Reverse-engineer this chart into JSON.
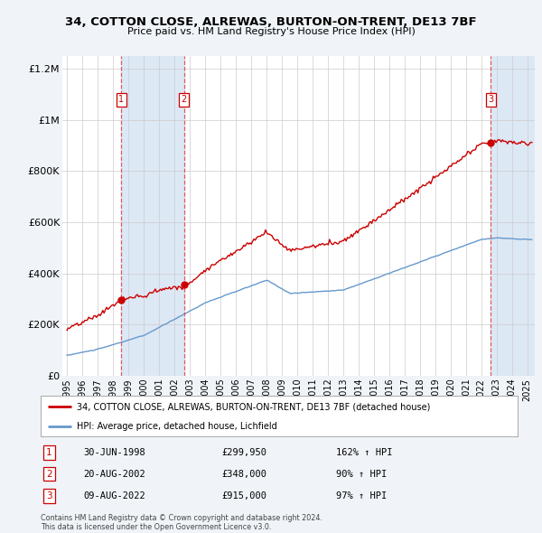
{
  "title_line1": "34, COTTON CLOSE, ALREWAS, BURTON-ON-TRENT, DE13 7BF",
  "title_line2": "Price paid vs. HM Land Registry's House Price Index (HPI)",
  "xlim": [
    1994.7,
    2025.5
  ],
  "ylim": [
    0,
    1250000
  ],
  "yticks": [
    0,
    200000,
    400000,
    600000,
    800000,
    1000000,
    1200000
  ],
  "ytick_labels": [
    "£0",
    "£200K",
    "£400K",
    "£600K",
    "£800K",
    "£1M",
    "£1.2M"
  ],
  "xticks": [
    1995,
    1996,
    1997,
    1998,
    1999,
    2000,
    2001,
    2002,
    2003,
    2004,
    2005,
    2006,
    2007,
    2008,
    2009,
    2010,
    2011,
    2012,
    2013,
    2014,
    2015,
    2016,
    2017,
    2018,
    2019,
    2020,
    2021,
    2022,
    2023,
    2024,
    2025
  ],
  "sale_color": "#cc0000",
  "hpi_color": "#6699cc",
  "background_color": "#f0f4f8",
  "plot_bg_color": "#ffffff",
  "shade_color": "#dde8f5",
  "dashed_color": "#dd4444",
  "sale_label": "34, COTTON CLOSE, ALREWAS, BURTON-ON-TRENT, DE13 7BF (detached house)",
  "hpi_label": "HPI: Average price, detached house, Lichfield",
  "transactions": [
    {
      "num": 1,
      "date": 1998.54,
      "price": 299950,
      "label": "1",
      "year": "30-JUN-1998",
      "amount": "£299,950",
      "pct": "162% ↑ HPI"
    },
    {
      "num": 2,
      "date": 2002.63,
      "price": 348000,
      "label": "2",
      "year": "20-AUG-2002",
      "amount": "£348,000",
      "pct": "90% ↑ HPI"
    },
    {
      "num": 3,
      "date": 2022.61,
      "price": 915000,
      "label": "3",
      "year": "09-AUG-2022",
      "amount": "£915,000",
      "pct": "97% ↑ HPI"
    }
  ],
  "footnote1": "Contains HM Land Registry data © Crown copyright and database right 2024.",
  "footnote2": "This data is licensed under the Open Government Licence v3.0."
}
